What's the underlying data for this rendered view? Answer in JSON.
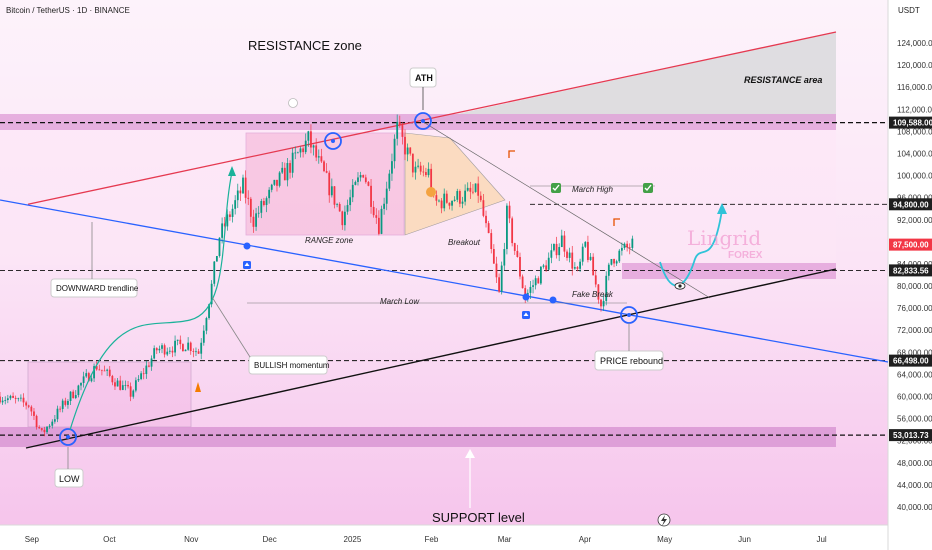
{
  "header": {
    "title": "Bitcoin / TetherUS · 1D · BINANCE",
    "currency": "USDT"
  },
  "y_ticks": [
    "124,000.00",
    "120,000.00",
    "116,000.00",
    "112,000.00",
    "108,000.00",
    "104,000.00",
    "100,000.00",
    "96,000.00",
    "92,000.00",
    "88,000.00",
    "84,000.00",
    "80,000.00",
    "76,000.00",
    "72,000.00",
    "68,000.00",
    "64,000.00",
    "60,000.00",
    "56,000.00",
    "52,000.00",
    "48,000.00",
    "44,000.00",
    "40,000.00"
  ],
  "x_ticks": [
    "Sep",
    "Oct",
    "Nov",
    "Dec",
    "2025",
    "Feb",
    "Mar",
    "Apr",
    "May",
    "Jun",
    "Jul"
  ],
  "price_levels": [
    {
      "label": "109,588.00",
      "value": 109588,
      "bg": "#1f1f1f",
      "fg": "#ffffff"
    },
    {
      "label": "94,800.00",
      "value": 94800,
      "bg": "#1f1f1f",
      "fg": "#ffffff"
    },
    {
      "label": "87,500.00",
      "value": 87500,
      "bg": "#f23645",
      "fg": "#ffffff"
    },
    {
      "label": "82,833.56",
      "value": 82833.56,
      "bg": "#1f1f1f",
      "fg": "#ffffff"
    },
    {
      "label": "66,498.00",
      "value": 66498,
      "bg": "#1f1f1f",
      "fg": "#ffffff"
    },
    {
      "label": "53,013.73",
      "value": 53013.73,
      "bg": "#1f1f1f",
      "fg": "#ffffff"
    }
  ],
  "annotations": {
    "resistance_zone": "RESISTANCE zone",
    "resistance_area": "RESISTANCE area",
    "ath": "ATH",
    "range_zone": "RANGE zone",
    "breakout": "Breakout",
    "march_high": "March High",
    "march_low": "March Low",
    "fake_break": "Fake Break",
    "downward_trendline": "DOWNWARD trendline",
    "bullish_momentum": "BULLISH momentum",
    "price_rebound": "PRICE rebound",
    "low": "LOW",
    "support_level": "SUPPORT level"
  },
  "watermark": {
    "brand": "Lingrid",
    "sub": "FOREX"
  },
  "colors": {
    "up": "#089981",
    "down": "#f23645",
    "resistance_line": "#e53950",
    "trend_line": "#2962ff",
    "support_line": "#111111",
    "zone": "#e5a8e0",
    "band": "#f7d6f0"
  },
  "chart_data": {
    "type": "candlestick",
    "title": "Bitcoin / TetherUS · 1D · BINANCE",
    "y_unit": "USDT",
    "ylim": [
      37000,
      128000
    ],
    "x_range": [
      "2024-08-21",
      "2025-07-15"
    ],
    "anchors": [
      [
        "2024-08-21",
        60000
      ],
      [
        "2024-09-01",
        58500
      ],
      [
        "2024-09-06",
        53200
      ],
      [
        "2024-09-15",
        59000
      ],
      [
        "2024-09-27",
        65500
      ],
      [
        "2024-10-10",
        60500
      ],
      [
        "2024-10-20",
        68500
      ],
      [
        "2024-11-01",
        69500
      ],
      [
        "2024-11-05",
        68000
      ],
      [
        "2024-11-10",
        80000
      ],
      [
        "2024-11-13",
        89000
      ],
      [
        "2024-11-22",
        98000
      ],
      [
        "2024-11-26",
        92000
      ],
      [
        "2024-12-05",
        98500
      ],
      [
        "2024-12-17",
        106500
      ],
      [
        "2024-12-30",
        92500
      ],
      [
        "2025-01-07",
        101000
      ],
      [
        "2025-01-13",
        91000
      ],
      [
        "2025-01-20",
        108500
      ],
      [
        "2025-01-27",
        100500
      ],
      [
        "2025-02-01",
        100500
      ],
      [
        "2025-02-03",
        95000
      ],
      [
        "2025-02-20",
        97000
      ],
      [
        "2025-02-25",
        86000
      ],
      [
        "2025-02-28",
        78500
      ],
      [
        "2025-03-03",
        93000
      ],
      [
        "2025-03-10",
        78000
      ],
      [
        "2025-03-24",
        88500
      ],
      [
        "2025-03-30",
        82000
      ],
      [
        "2025-04-02",
        87500
      ],
      [
        "2025-04-08",
        76500
      ],
      [
        "2025-04-12",
        85000
      ],
      [
        "2025-04-20",
        87500
      ]
    ],
    "levels": {
      "ath": 109588,
      "resistance_line_top": 124000,
      "march_high": 94800,
      "current": 87500,
      "zone": 82833.56,
      "support_zone": 53013.73,
      "range_low": 66498
    }
  }
}
